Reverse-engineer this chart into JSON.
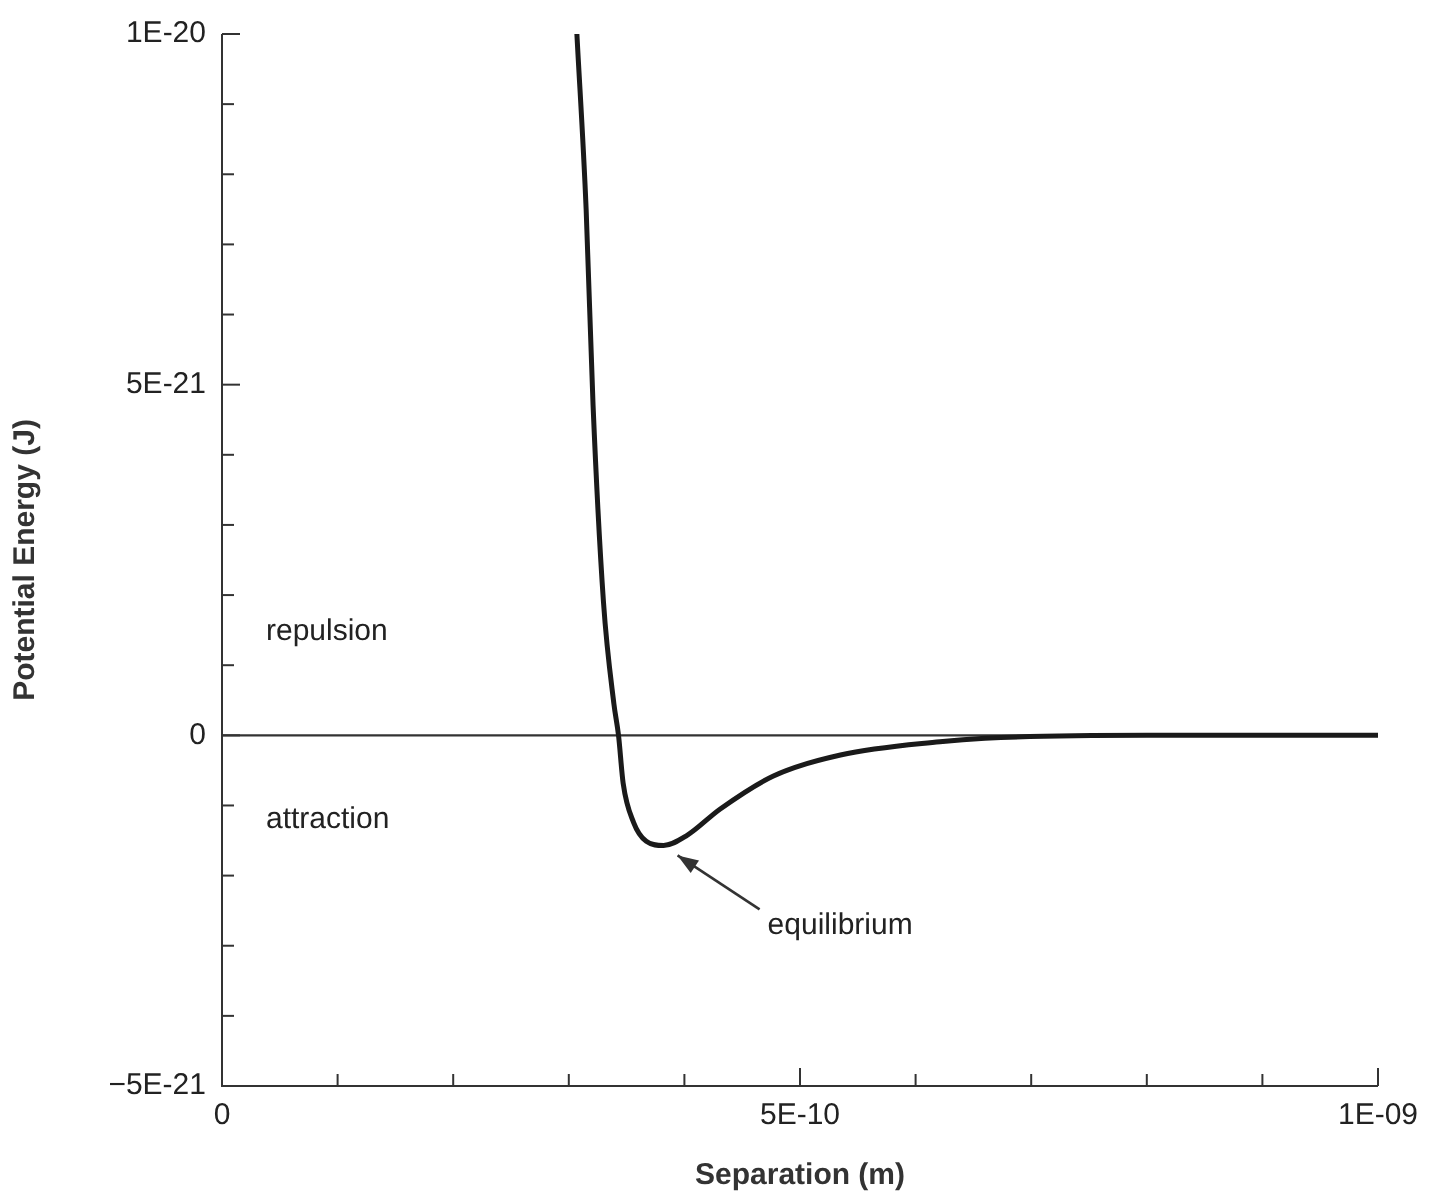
{
  "chart_data": {
    "type": "line",
    "xlabel": "Separation (m)",
    "ylabel": "Potential Energy (J)",
    "series": [
      {
        "color": "#1a1a1a",
        "x": [
          3.07e-10,
          3.15e-10,
          3.21e-10,
          3.3e-10,
          3.39e-10,
          3.43e-10,
          3.47e-10,
          3.56e-10,
          3.67e-10,
          3.82e-10,
          4.02e-10,
          4.31e-10,
          4.77e-10,
          5.35e-10,
          6.21e-10,
          6.6e-10,
          8e-10,
          1e-09
        ],
        "values": [
          1e-20,
          7.5e-21,
          4.7e-21,
          1.9e-21,
          4.5e-22,
          0,
          -6.8e-22,
          -1.24e-21,
          -1.51e-21,
          -1.57e-21,
          -1.43e-21,
          -1.05e-21,
          -5.8e-22,
          -2.8e-22,
          -9e-23,
          -4e-23,
          0,
          0
        ]
      }
    ],
    "xlim": [
      0,
      1e-09
    ],
    "xticks": [
      {
        "value": 0,
        "label": "0"
      },
      {
        "value": 1e-10,
        "label": null
      },
      {
        "value": 2e-10,
        "label": null
      },
      {
        "value": 3e-10,
        "label": null
      },
      {
        "value": 4e-10,
        "label": null
      },
      {
        "value": 5e-10,
        "label": "5E-10"
      },
      {
        "value": 6e-10,
        "label": null
      },
      {
        "value": 7e-10,
        "label": null
      },
      {
        "value": 8e-10,
        "label": null
      },
      {
        "value": 9e-10,
        "label": null
      },
      {
        "value": 1e-09,
        "label": "1E-09"
      }
    ],
    "ylim": [
      -5e-21,
      1e-20
    ],
    "yticks": [
      {
        "value": -5e-21,
        "label": "−5E-21"
      },
      {
        "value": -4e-21,
        "label": null
      },
      {
        "value": -3e-21,
        "label": null
      },
      {
        "value": -2e-21,
        "label": null
      },
      {
        "value": -1e-21,
        "label": null
      },
      {
        "value": 0,
        "label": "0"
      },
      {
        "value": 1e-21,
        "label": null
      },
      {
        "value": 2e-21,
        "label": null
      },
      {
        "value": 3e-21,
        "label": null
      },
      {
        "value": 4e-21,
        "label": null
      },
      {
        "value": 5e-21,
        "label": "5E-21"
      },
      {
        "value": 6e-21,
        "label": null
      },
      {
        "value": 7e-21,
        "label": null
      },
      {
        "value": 8e-21,
        "label": null
      },
      {
        "value": 9e-21,
        "label": null
      },
      {
        "value": 1e-20,
        "label": "1E-20"
      }
    ],
    "ref_lines": [
      {
        "axis": "y",
        "value": 0,
        "color": "#333333"
      }
    ],
    "annotations": [
      "repulsion",
      "attraction",
      "equilibrium"
    ],
    "grid": false,
    "legend": false,
    "marker": "none",
    "line_style": "solid"
  }
}
